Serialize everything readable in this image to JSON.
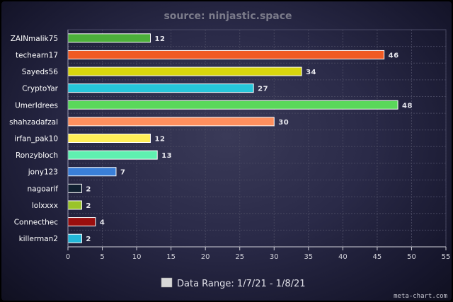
{
  "chart_data": {
    "type": "bar",
    "orientation": "horizontal",
    "title": "source: ninjastic.space",
    "categories": [
      "ZAINmalik75",
      "techearn17",
      "Sayeds56",
      "CryptoYar",
      "UmerIdrees",
      "shahzadafzal",
      "irfan_pak10",
      "Ronzybloch",
      "jony123",
      "nagoarif",
      "lolxxxx",
      "Connecthec",
      "killerman2"
    ],
    "values": [
      12,
      46,
      34,
      27,
      48,
      30,
      12,
      13,
      7,
      2,
      2,
      4,
      2
    ],
    "colors": [
      "#4caf3a",
      "#f05a23",
      "#d9d60e",
      "#26c6da",
      "#5ad85a",
      "#ff8f5e",
      "#ffee58",
      "#5ff0b0",
      "#3a7fd8",
      "#102030",
      "#9ac42a",
      "#9a0e0e",
      "#22b8d8"
    ],
    "xlim": [
      0,
      55
    ],
    "xticks": [
      "0",
      "5",
      "10",
      "15",
      "20",
      "25",
      "30",
      "35",
      "40",
      "45",
      "50",
      "55"
    ],
    "grid": true,
    "legend": {
      "label": "Data Range: 1/7/21 - 1/8/21",
      "swatch_color": "#d8d8d8",
      "position": "bottom"
    }
  },
  "credit": "meta-chart.com"
}
